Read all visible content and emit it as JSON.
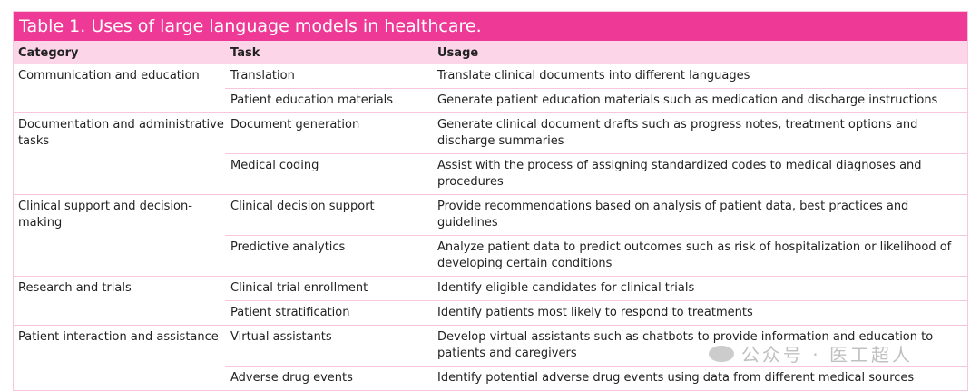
{
  "title": "Table 1.  Uses of large language models in healthcare.",
  "headers": {
    "category": "Category",
    "task": "Task",
    "usage": "Usage"
  },
  "groups": [
    {
      "category": "Communication and education",
      "rows": [
        {
          "task": "Translation",
          "usage": "Translate clinical documents into different languages"
        },
        {
          "task": "Patient education materials",
          "usage": "Generate patient education materials such as medication and discharge instructions"
        }
      ]
    },
    {
      "category": "Documentation and administrative tasks",
      "rows": [
        {
          "task": "Document generation",
          "usage": "Generate clinical document drafts such as progress notes, treatment options and discharge summaries"
        },
        {
          "task": "Medical coding",
          "usage": "Assist with the process of assigning standardized codes to medical diagnoses and procedures"
        }
      ]
    },
    {
      "category": "Clinical support and decision-making",
      "rows": [
        {
          "task": "Clinical decision support",
          "usage": "Provide recommendations based on analysis of patient data, best practices and guidelines"
        },
        {
          "task": "Predictive analytics",
          "usage": "Analyze patient data to predict outcomes such as risk of hospitalization or likelihood of developing certain conditions"
        }
      ]
    },
    {
      "category": "Research and trials",
      "rows": [
        {
          "task": "Clinical trial enrollment",
          "usage": "Identify eligible candidates for clinical trials"
        },
        {
          "task": "Patient stratification",
          "usage": "Identify patients most likely to respond to treatments"
        }
      ]
    },
    {
      "category": "Patient interaction and assistance",
      "rows": [
        {
          "task": "Virtual assistants",
          "usage": "Develop virtual assistants such as chatbots to provide information and education to patients and caregivers"
        },
        {
          "task": "Adverse drug events",
          "usage": "Identify potential adverse drug events using data from different medical sources"
        }
      ]
    }
  ],
  "watermark": "公众号 · 医工超人",
  "colors": {
    "title_bg": "#ee3a96",
    "header_bg": "#fcd6e8",
    "rule": "#f7c6dc"
  }
}
